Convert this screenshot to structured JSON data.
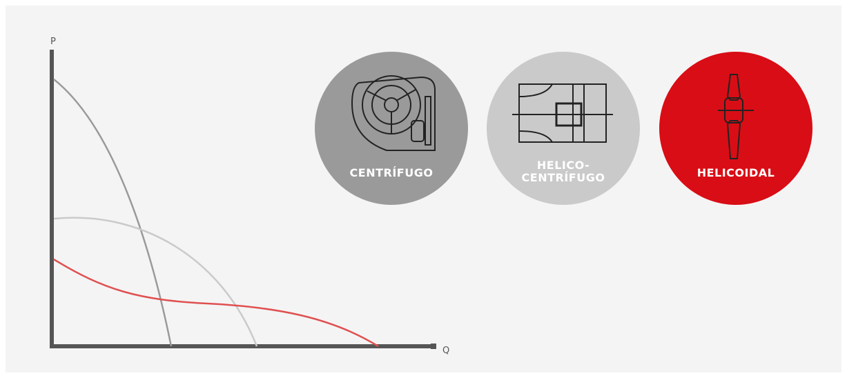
{
  "axes": {
    "y_label": "P",
    "x_label": "Q"
  },
  "fans": [
    {
      "label_lines": [
        "CENTRÍFUGO"
      ]
    },
    {
      "label_lines": [
        "HELICO-",
        "CENTRÍFUGO"
      ]
    },
    {
      "label_lines": [
        "HELICOIDAL"
      ]
    }
  ]
}
